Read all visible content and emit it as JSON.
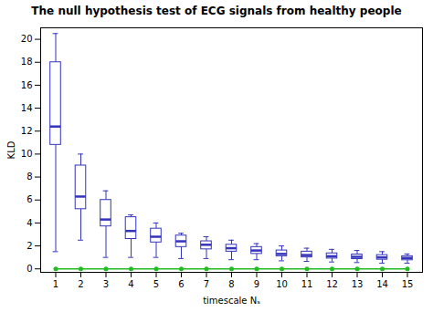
{
  "chart_data": {
    "type": "box",
    "title": "The null hypothesis test of ECG signals from healthy people",
    "xlabel": "timescale Nₛ",
    "ylabel": "KLD",
    "xlim": [
      0.4,
      15.6
    ],
    "ylim": [
      -0.3,
      21
    ],
    "xticks": [
      1,
      2,
      3,
      4,
      5,
      6,
      7,
      8,
      9,
      10,
      11,
      12,
      13,
      14,
      15
    ],
    "yticks": [
      0,
      2,
      4,
      6,
      8,
      10,
      12,
      14,
      16,
      18,
      20
    ],
    "grid": false,
    "x": [
      1,
      2,
      3,
      4,
      5,
      6,
      7,
      8,
      9,
      10,
      11,
      12,
      13,
      14,
      15
    ],
    "series": [
      {
        "type": "box",
        "color": "#3333bb",
        "q1": [
          10.8,
          5.2,
          3.7,
          2.6,
          2.3,
          1.9,
          1.7,
          1.5,
          1.3,
          1.1,
          1.0,
          0.9,
          0.85,
          0.8,
          0.75
        ],
        "median": [
          12.4,
          6.3,
          4.3,
          3.3,
          2.8,
          2.4,
          2.1,
          1.8,
          1.6,
          1.3,
          1.2,
          1.1,
          1.05,
          1.0,
          0.95
        ],
        "q3": [
          18.0,
          9.0,
          6.0,
          4.5,
          3.5,
          2.9,
          2.4,
          2.1,
          1.9,
          1.6,
          1.5,
          1.35,
          1.25,
          1.2,
          1.1
        ],
        "whislo": [
          1.5,
          2.5,
          1.0,
          1.0,
          1.0,
          0.9,
          0.9,
          0.8,
          0.8,
          0.7,
          0.65,
          0.6,
          0.55,
          0.5,
          0.5
        ],
        "whishi": [
          20.5,
          10.0,
          6.8,
          4.7,
          4.0,
          3.1,
          2.8,
          2.5,
          2.2,
          2.0,
          1.8,
          1.7,
          1.6,
          1.5,
          1.3
        ]
      },
      {
        "type": "line",
        "color": "#22bb22",
        "marker": "circle",
        "values": [
          0.0,
          0.0,
          0.0,
          0.0,
          0.0,
          0.0,
          0.0,
          0.0,
          0.0,
          0.0,
          0.0,
          0.0,
          0.0,
          0.0,
          0.0
        ]
      }
    ]
  }
}
